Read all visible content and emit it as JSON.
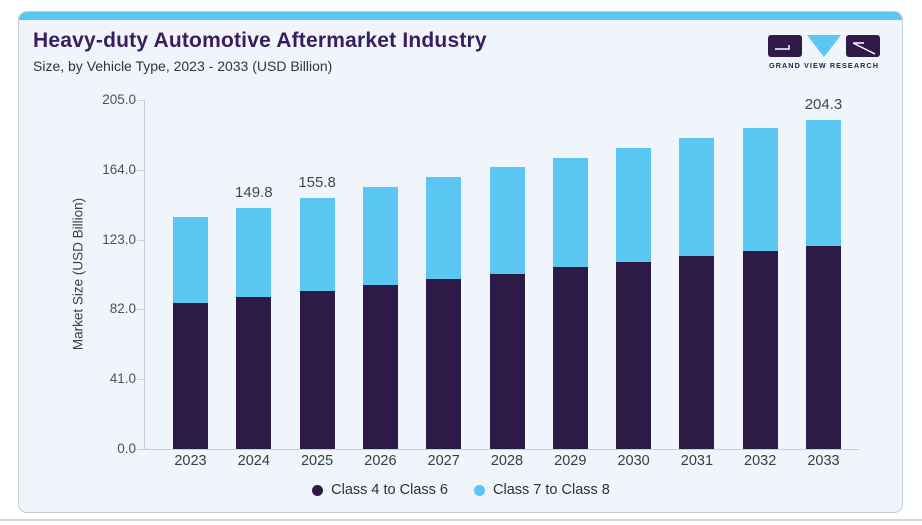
{
  "header": {
    "title": "Heavy-duty Automotive Aftermarket Industry",
    "subtitle": "Size, by Vehicle Type, 2023 - 2033 (USD Billion)"
  },
  "logo": {
    "text": "GRAND VIEW RESEARCH"
  },
  "colors": {
    "accent_blue": "#5ac6f2",
    "series_purple": "#2e1a46",
    "title_purple": "#3a1d5c",
    "card_bg": "#eff5fa",
    "card_border": "#c6ccd2",
    "axis_gray": "#c9cdd5"
  },
  "chart_data": {
    "type": "bar",
    "stacked": true,
    "title": "Heavy-duty Automotive Aftermarket Industry Size, by Vehicle Type, 2023 - 2033 (USD Billion)",
    "categories": [
      "2023",
      "2024",
      "2025",
      "2026",
      "2027",
      "2028",
      "2029",
      "2030",
      "2031",
      "2032",
      "2033"
    ],
    "series": [
      {
        "name": "Class 4 to Class 6",
        "color": "#2e1a46",
        "values": [
          90.8,
          94.5,
          98.2,
          101.7,
          105.5,
          108.8,
          113.1,
          116.2,
          119.9,
          123.0,
          126.1
        ]
      },
      {
        "name": "Class 7 to Class 8",
        "color": "#5ac6f2",
        "values": [
          53.0,
          55.3,
          57.6,
          60.6,
          63.0,
          65.9,
          67.2,
          70.7,
          73.0,
          75.9,
          78.2
        ]
      }
    ],
    "totals": [
      143.8,
      149.8,
      155.8,
      162.3,
      168.5,
      174.7,
      180.3,
      186.9,
      192.9,
      198.9,
      204.3
    ],
    "total_labels": {
      "2024": "149.8",
      "2025": "155.8",
      "2033": "204.3"
    },
    "ylabel": "Market Size (USD Billion)",
    "xlabel": "",
    "yticks": [
      0,
      41,
      82,
      123,
      164,
      205
    ],
    "ytick_labels": [
      "0.0",
      "41.0",
      "82.0",
      "123.0",
      "164.0",
      "205.0"
    ],
    "ylim": [
      0,
      205
    ],
    "grid": false,
    "legend_position": "bottom"
  }
}
